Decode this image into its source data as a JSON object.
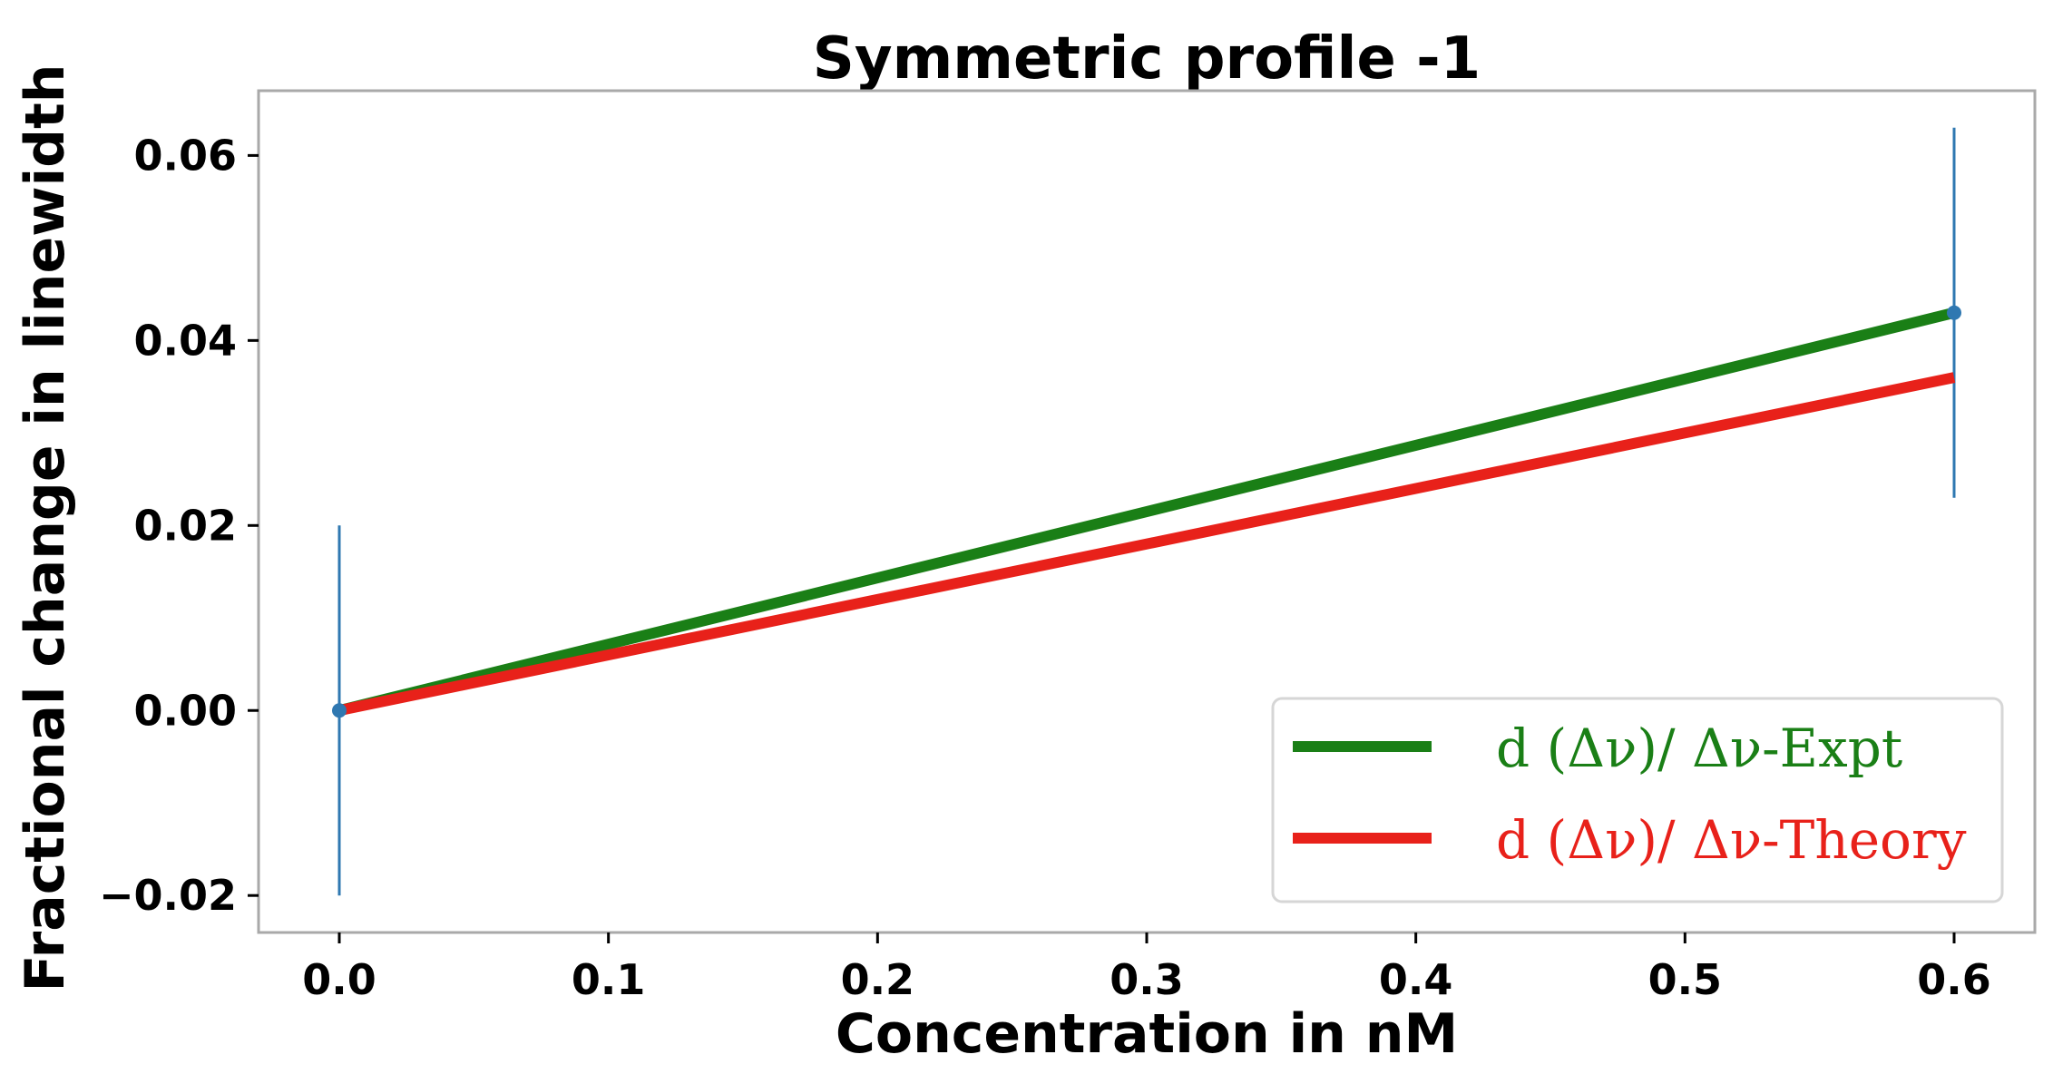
{
  "chart_data": {
    "type": "line",
    "title": "Symmetric profile -1",
    "xlabel": "Concentration in nM",
    "ylabel": "Fractional change in linewidth",
    "xlim": [
      -0.03,
      0.63
    ],
    "ylim": [
      -0.024,
      0.067
    ],
    "xticks": [
      0.0,
      0.1,
      0.2,
      0.3,
      0.4,
      0.5,
      0.6
    ],
    "xtick_labels": [
      "0.0",
      "0.1",
      "0.2",
      "0.3",
      "0.4",
      "0.5",
      "0.6"
    ],
    "yticks": [
      -0.02,
      0.0,
      0.02,
      0.04,
      0.06
    ],
    "ytick_labels": [
      "−0.02",
      "0.00",
      "0.02",
      "0.04",
      "0.06"
    ],
    "grid": false,
    "legend_position": "lower-right",
    "series": [
      {
        "name": "d (Δν)/ Δν-Expt",
        "color": "#1a7f16",
        "x": [
          0.0,
          0.6
        ],
        "y": [
          0.0,
          0.043
        ]
      },
      {
        "name": "d (Δν)/ Δν-Theory",
        "color": "#e8211a",
        "x": [
          0.0,
          0.6
        ],
        "y": [
          0.0,
          0.036
        ]
      }
    ],
    "error_points": {
      "color": "#2f78b1",
      "x": [
        0.0,
        0.6
      ],
      "y": [
        0.0,
        0.043
      ],
      "yerr": [
        0.02,
        0.02
      ]
    }
  }
}
